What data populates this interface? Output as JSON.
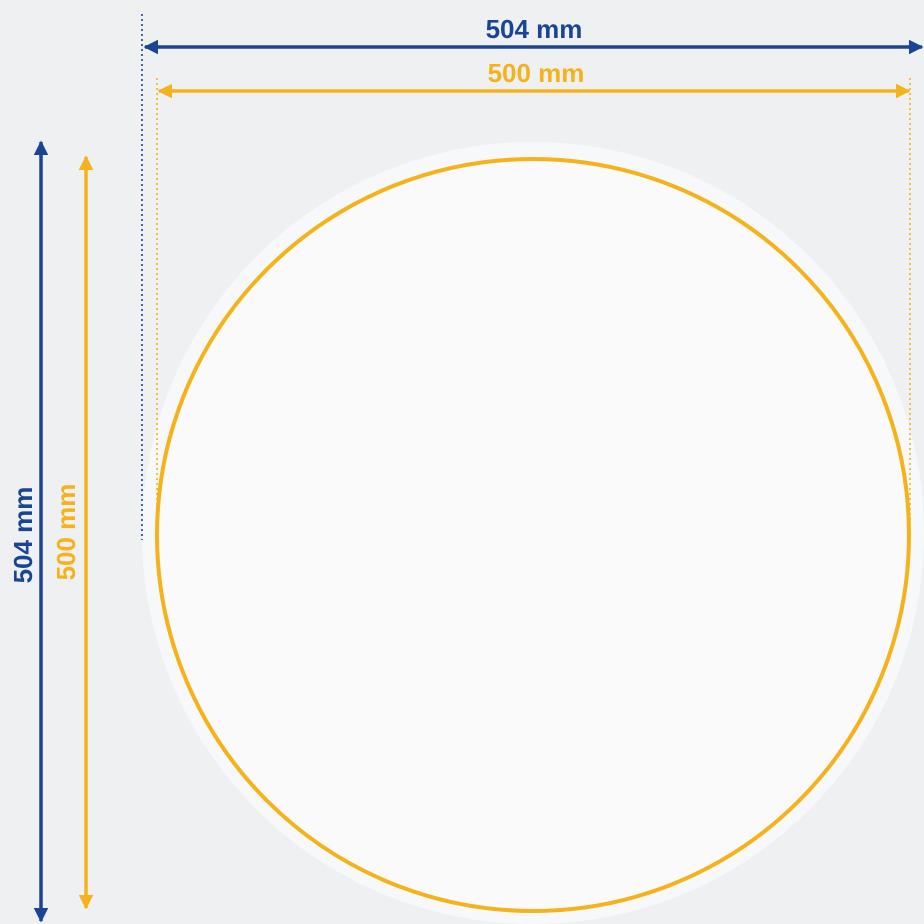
{
  "outer_dimension": {
    "label": "504 mm",
    "value": 504,
    "unit": "mm",
    "color": "#1a4595"
  },
  "inner_dimension": {
    "label": "500 mm",
    "value": 500,
    "unit": "mm",
    "color": "#f5b21b"
  },
  "colors": {
    "background": "#eef0f2",
    "outer_disc": "#f7f8f9",
    "inner_disc": "#fafafa"
  }
}
